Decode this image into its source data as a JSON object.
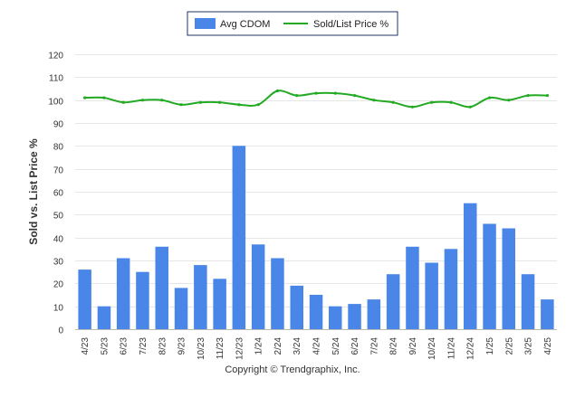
{
  "chart_data": {
    "type": "bar",
    "ylabel": "Sold vs. List Price %",
    "ylim": [
      0,
      120
    ],
    "yticks": [
      0,
      10,
      20,
      30,
      40,
      50,
      60,
      70,
      80,
      90,
      100,
      110,
      120
    ],
    "grid": true,
    "legend_placement": "top-center",
    "categories": [
      "4/23",
      "5/23",
      "6/23",
      "7/23",
      "8/23",
      "9/23",
      "10/23",
      "11/23",
      "12/23",
      "1/24",
      "2/24",
      "3/24",
      "4/24",
      "5/24",
      "6/24",
      "7/24",
      "8/24",
      "9/24",
      "10/24",
      "11/24",
      "12/24",
      "1/25",
      "2/25",
      "3/25",
      "4/25"
    ],
    "series": [
      {
        "name": "Avg CDOM",
        "type": "bar",
        "color": "#4a86e8",
        "values": [
          26,
          10,
          31,
          25,
          36,
          18,
          28,
          22,
          80,
          37,
          31,
          19,
          15,
          10,
          11,
          13,
          24,
          36,
          29,
          35,
          55,
          46,
          44,
          24,
          13
        ]
      },
      {
        "name": "Sold/List Price %",
        "type": "line",
        "color": "#22aa22",
        "values": [
          101,
          101,
          99,
          100,
          100,
          98,
          99,
          99,
          98,
          98,
          104,
          102,
          103,
          103,
          102,
          100,
          99,
          97,
          99,
          99,
          97,
          101,
          100,
          102,
          102
        ]
      }
    ]
  },
  "footer": {
    "copyright": "Copyright © Trendgraphix, Inc."
  }
}
